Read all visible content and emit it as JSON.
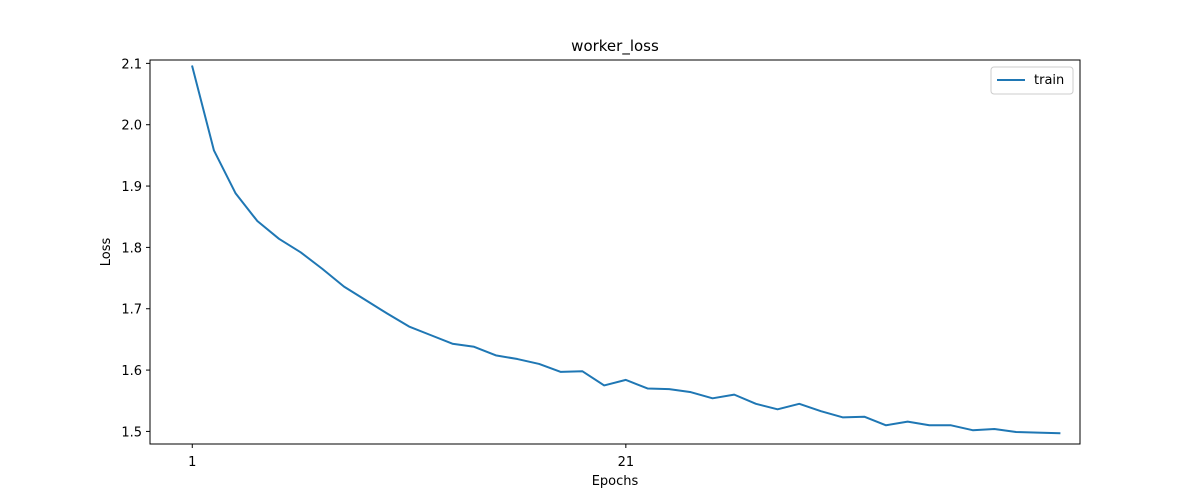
{
  "chart_data": {
    "type": "line",
    "title": "worker_loss",
    "xlabel": "Epochs",
    "ylabel": "Loss",
    "x_ticks": [
      1,
      21
    ],
    "y_ticks": [
      "1.5",
      "1.6",
      "1.7",
      "1.8",
      "1.9",
      "2.0",
      "2.1"
    ],
    "xlim": [
      -0.95,
      41.95
    ],
    "ylim": [
      1.4795,
      2.1055
    ],
    "grid": false,
    "legend_position": "top-right",
    "series": [
      {
        "name": "train",
        "color": "#1f77b4",
        "x": [
          1,
          2,
          3,
          4,
          5,
          6,
          7,
          8,
          9,
          10,
          11,
          12,
          13,
          14,
          15,
          16,
          17,
          18,
          19,
          20,
          21,
          22,
          23,
          24,
          25,
          26,
          27,
          28,
          29,
          30,
          31,
          32,
          33,
          34,
          35,
          36,
          37,
          38,
          39,
          40,
          41
        ],
        "values": [
          2.095,
          1.958,
          1.888,
          1.843,
          1.814,
          1.792,
          1.765,
          1.736,
          1.714,
          1.692,
          1.671,
          1.657,
          1.643,
          1.638,
          1.624,
          1.618,
          1.61,
          1.597,
          1.598,
          1.575,
          1.584,
          1.57,
          1.569,
          1.564,
          1.554,
          1.56,
          1.545,
          1.536,
          1.545,
          1.533,
          1.523,
          1.524,
          1.51,
          1.516,
          1.51,
          1.51,
          1.502,
          1.504,
          1.499,
          1.498,
          1.497
        ]
      }
    ]
  }
}
